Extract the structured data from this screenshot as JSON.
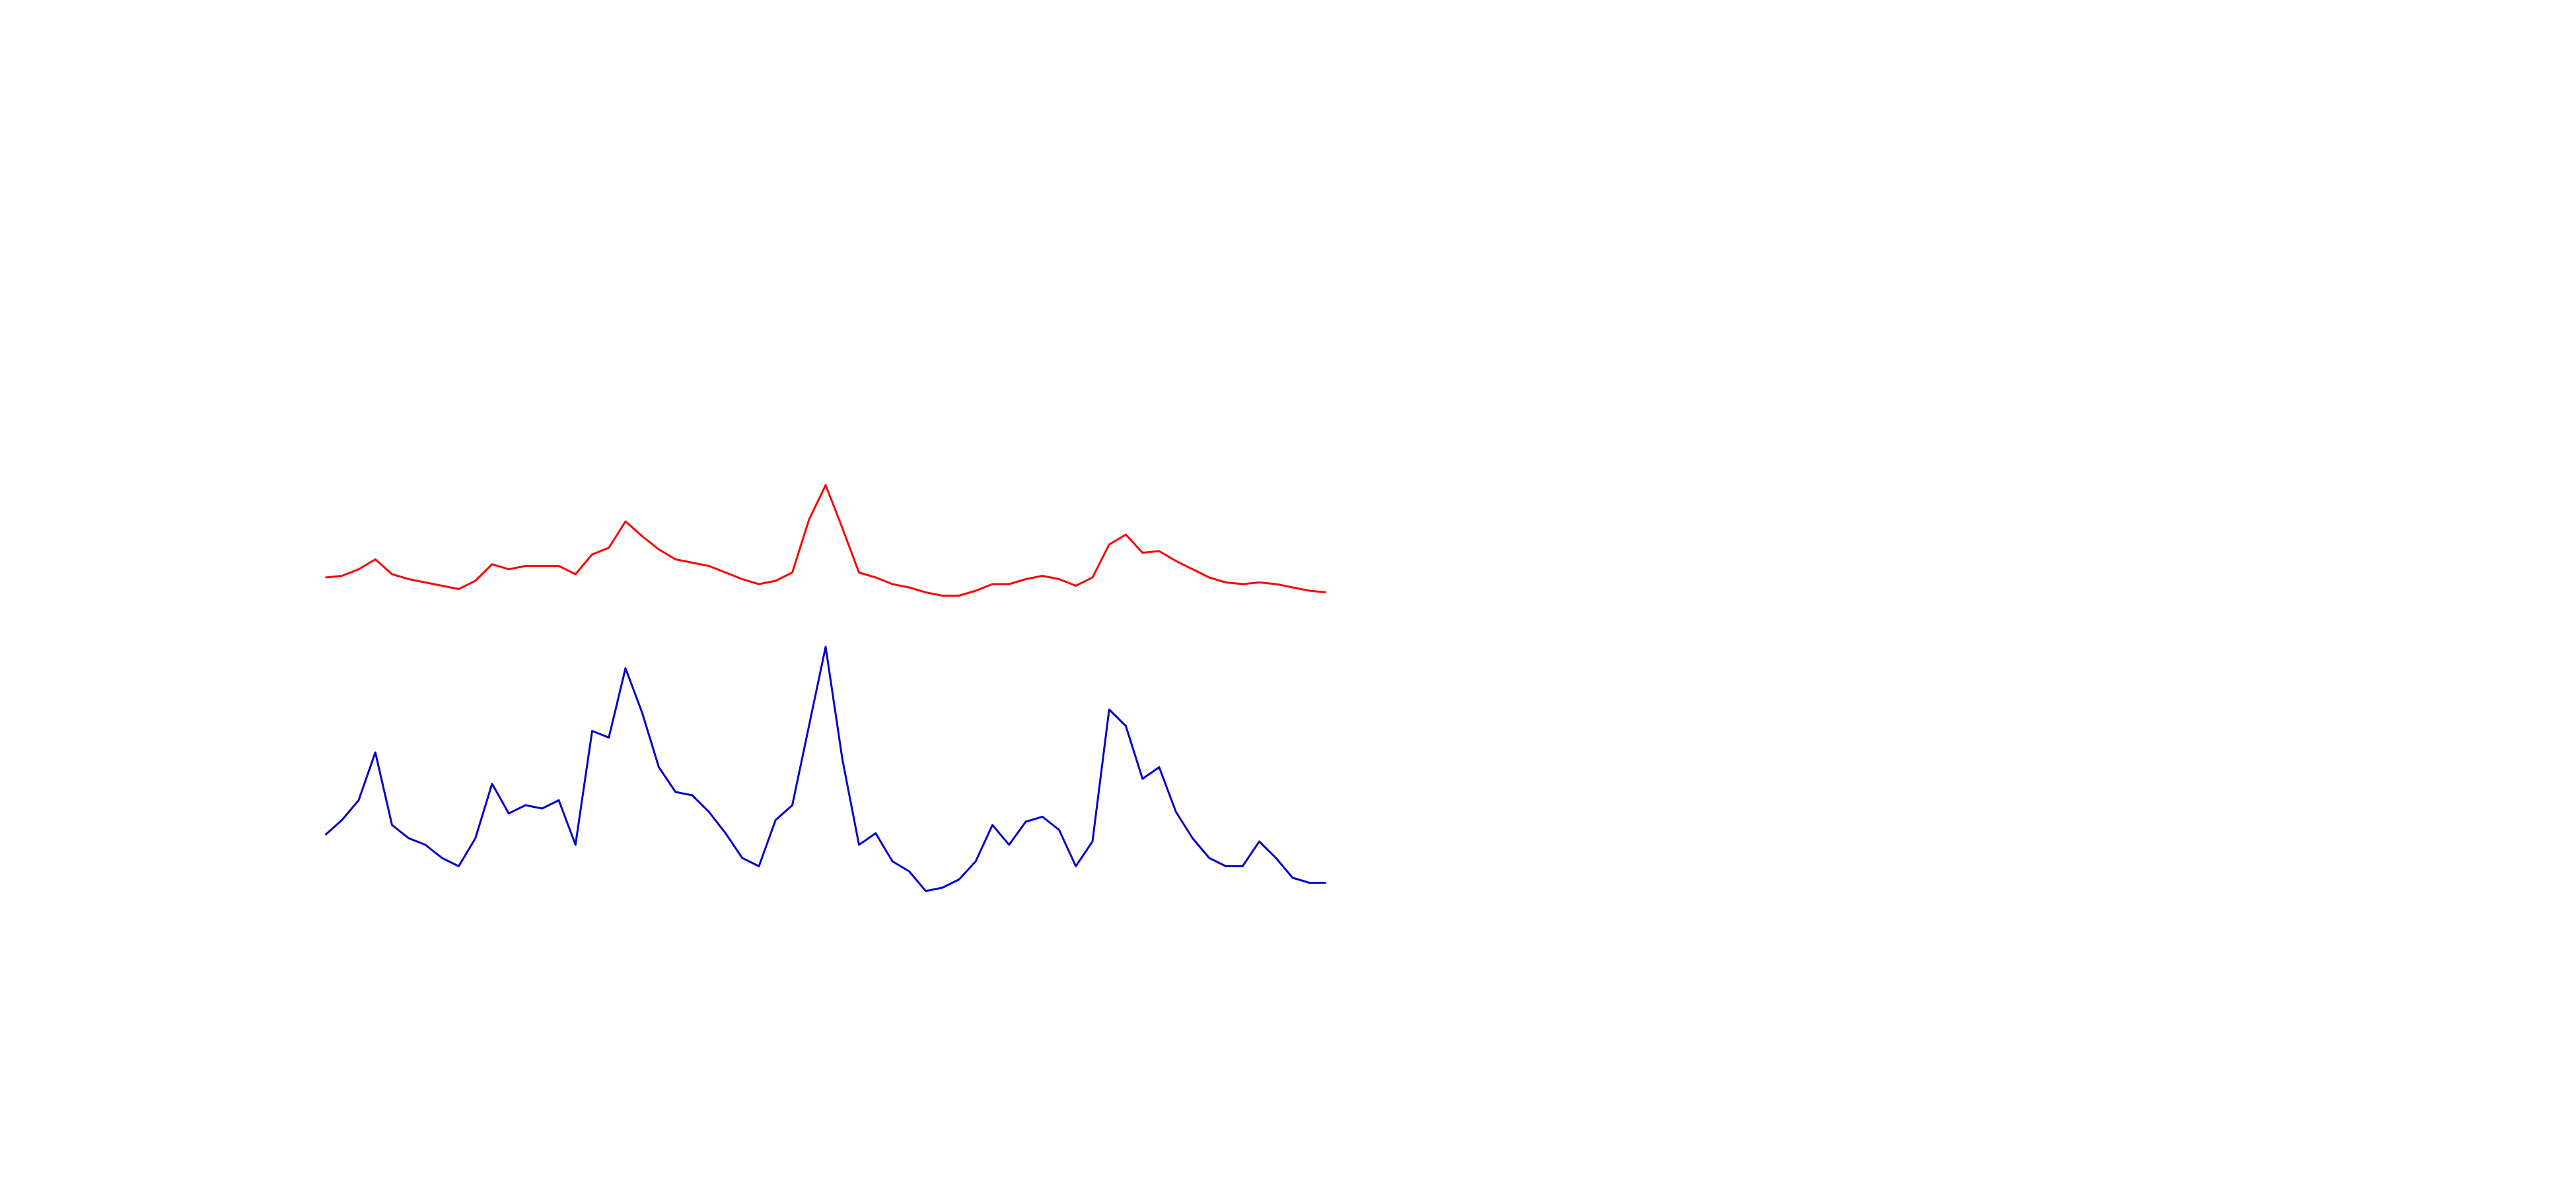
{
  "chart_data": {
    "type": "line",
    "x": [
      0,
      1,
      2,
      3,
      4,
      5,
      6,
      7,
      8,
      9,
      10,
      11,
      12,
      13,
      14,
      15,
      16,
      17,
      18,
      19,
      20,
      21,
      22,
      23,
      24,
      25,
      26,
      27,
      28,
      29,
      30,
      31,
      32,
      33,
      34,
      35,
      36,
      37,
      38,
      39,
      40,
      41,
      42,
      43,
      44,
      45,
      46,
      47,
      48,
      49,
      50,
      51,
      52,
      53,
      54,
      55,
      56,
      57,
      58,
      59,
      60
    ],
    "xlim": [
      0,
      60
    ],
    "ylim": [
      0,
      720
    ],
    "series": [
      {
        "color": "#ff0000",
        "values": [
          370,
          371,
          375,
          381,
          372,
          369,
          367,
          365,
          363,
          368,
          378,
          375,
          377,
          377,
          377,
          372,
          384,
          388,
          404,
          395,
          387,
          381,
          379,
          377,
          373,
          369,
          366,
          368,
          373,
          405,
          426,
          400,
          373,
          370,
          366,
          364,
          361,
          359,
          359,
          362,
          366,
          366,
          369,
          371,
          369,
          365,
          370,
          390,
          396,
          385,
          386,
          380,
          375,
          370,
          367,
          366,
          367,
          366,
          364,
          362,
          361
        ]
      },
      {
        "color": "#0000cc",
        "values": [
          214,
          223,
          235,
          264,
          220,
          212,
          208,
          200,
          195,
          212,
          245,
          227,
          232,
          230,
          235,
          208,
          277,
          273,
          315,
          288,
          255,
          240,
          238,
          228,
          215,
          200,
          195,
          223,
          232,
          280,
          328,
          260,
          208,
          215,
          198,
          192,
          180,
          182,
          187,
          198,
          220,
          208,
          222,
          225,
          217,
          195,
          210,
          290,
          280,
          248,
          255,
          228,
          212,
          200,
          195,
          195,
          210,
          200,
          188,
          185,
          185
        ]
      }
    ]
  }
}
